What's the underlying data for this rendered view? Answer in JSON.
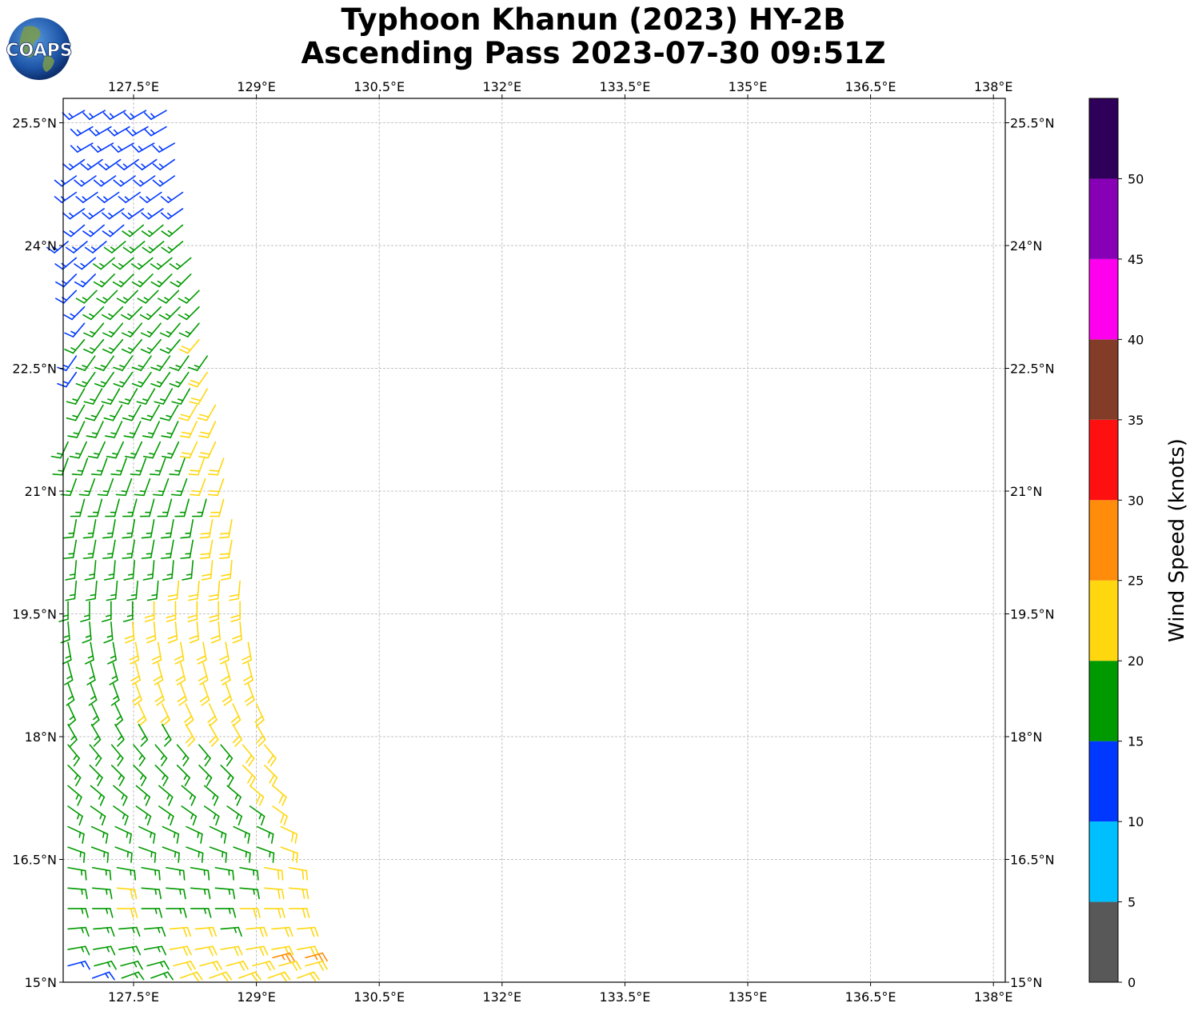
{
  "header": {
    "title_line1": "Typhoon Khanun (2023) HY-2B",
    "title_line2": "Ascending Pass 2023-07-30 09:51Z",
    "logo_text": "COAPS"
  },
  "map": {
    "lon_range": [
      126.7,
      138.2
    ],
    "lat_range": [
      15.0,
      25.8
    ],
    "lon_ticks": [
      {
        "value": 127.5,
        "label": "127.5°E"
      },
      {
        "value": 129.0,
        "label": "129°E"
      },
      {
        "value": 130.5,
        "label": "130.5°E"
      },
      {
        "value": 132.0,
        "label": "132°E"
      },
      {
        "value": 133.5,
        "label": "133.5°E"
      },
      {
        "value": 135.0,
        "label": "135°E"
      },
      {
        "value": 136.5,
        "label": "136.5°E"
      },
      {
        "value": 138.0,
        "label": "138°E"
      }
    ],
    "lat_ticks": [
      {
        "value": 15.0,
        "label": "15°N"
      },
      {
        "value": 16.5,
        "label": "16.5°N"
      },
      {
        "value": 18.0,
        "label": "18°N"
      },
      {
        "value": 19.5,
        "label": "19.5°N"
      },
      {
        "value": 21.0,
        "label": "21°N"
      },
      {
        "value": 22.5,
        "label": "22.5°N"
      },
      {
        "value": 24.0,
        "label": "24°N"
      },
      {
        "value": 25.5,
        "label": "25.5°N"
      }
    ],
    "grid": true,
    "swath_wind_barbs": {
      "description_of_rows": "each row: latitude, lon_start, lon_end, count, wind direction (deg, meteorological from), speed segments [{from_index, speed_kt}]",
      "rows": [
        {
          "lat": 25.65,
          "lon_start": 126.9,
          "lon_end": 127.9,
          "count": 5,
          "dir": 240,
          "speeds": [
            {
              "from": 0,
              "kt": 13
            }
          ]
        },
        {
          "lat": 25.45,
          "lon_start": 127.0,
          "lon_end": 127.9,
          "count": 5,
          "dir": 240,
          "speeds": [
            {
              "from": 0,
              "kt": 13
            }
          ]
        },
        {
          "lat": 25.25,
          "lon_start": 127.0,
          "lon_end": 128.0,
          "count": 5,
          "dir": 240,
          "speeds": [
            {
              "from": 0,
              "kt": 13
            }
          ]
        },
        {
          "lat": 25.05,
          "lon_start": 126.9,
          "lon_end": 128.0,
          "count": 6,
          "dir": 235,
          "speeds": [
            {
              "from": 0,
              "kt": 13
            }
          ]
        },
        {
          "lat": 24.85,
          "lon_start": 126.8,
          "lon_end": 128.0,
          "count": 6,
          "dir": 235,
          "speeds": [
            {
              "from": 0,
              "kt": 13
            }
          ]
        },
        {
          "lat": 24.65,
          "lon_start": 126.8,
          "lon_end": 128.1,
          "count": 6,
          "dir": 235,
          "speeds": [
            {
              "from": 0,
              "kt": 14
            }
          ]
        },
        {
          "lat": 24.45,
          "lon_start": 126.9,
          "lon_end": 128.1,
          "count": 6,
          "dir": 235,
          "speeds": [
            {
              "from": 0,
              "kt": 14
            }
          ]
        },
        {
          "lat": 24.25,
          "lon_start": 126.9,
          "lon_end": 128.1,
          "count": 6,
          "dir": 230,
          "speeds": [
            {
              "from": 0,
              "kt": 14
            },
            {
              "from": 3,
              "kt": 16
            }
          ]
        },
        {
          "lat": 24.05,
          "lon_start": 126.7,
          "lon_end": 128.1,
          "count": 7,
          "dir": 230,
          "speeds": [
            {
              "from": 0,
              "kt": 14
            },
            {
              "from": 3,
              "kt": 16
            }
          ]
        },
        {
          "lat": 23.85,
          "lon_start": 126.8,
          "lon_end": 128.2,
          "count": 7,
          "dir": 230,
          "speeds": [
            {
              "from": 0,
              "kt": 14
            },
            {
              "from": 2,
              "kt": 17
            }
          ]
        },
        {
          "lat": 23.65,
          "lon_start": 126.8,
          "lon_end": 128.2,
          "count": 7,
          "dir": 225,
          "speeds": [
            {
              "from": 0,
              "kt": 14
            },
            {
              "from": 2,
              "kt": 17
            }
          ]
        },
        {
          "lat": 23.45,
          "lon_start": 126.8,
          "lon_end": 128.3,
          "count": 7,
          "dir": 225,
          "speeds": [
            {
              "from": 0,
              "kt": 14
            },
            {
              "from": 1,
              "kt": 17
            }
          ]
        },
        {
          "lat": 23.25,
          "lon_start": 126.9,
          "lon_end": 128.3,
          "count": 7,
          "dir": 225,
          "speeds": [
            {
              "from": 0,
              "kt": 14
            },
            {
              "from": 1,
              "kt": 17
            }
          ]
        },
        {
          "lat": 23.05,
          "lon_start": 126.9,
          "lon_end": 128.3,
          "count": 7,
          "dir": 220,
          "speeds": [
            {
              "from": 0,
              "kt": 14
            },
            {
              "from": 1,
              "kt": 17
            }
          ]
        },
        {
          "lat": 22.85,
          "lon_start": 126.9,
          "lon_end": 128.3,
          "count": 7,
          "dir": 220,
          "speeds": [
            {
              "from": 0,
              "kt": 17
            },
            {
              "from": 6,
              "kt": 21
            }
          ]
        },
        {
          "lat": 22.65,
          "lon_start": 126.8,
          "lon_end": 128.4,
          "count": 8,
          "dir": 215,
          "speeds": [
            {
              "from": 0,
              "kt": 14
            },
            {
              "from": 1,
              "kt": 17
            }
          ]
        },
        {
          "lat": 22.45,
          "lon_start": 126.8,
          "lon_end": 128.4,
          "count": 8,
          "dir": 215,
          "speeds": [
            {
              "from": 0,
              "kt": 14
            },
            {
              "from": 1,
              "kt": 17
            },
            {
              "from": 7,
              "kt": 21
            }
          ]
        },
        {
          "lat": 22.25,
          "lon_start": 126.9,
          "lon_end": 128.4,
          "count": 8,
          "dir": 210,
          "speeds": [
            {
              "from": 0,
              "kt": 17
            },
            {
              "from": 7,
              "kt": 21
            }
          ]
        },
        {
          "lat": 22.05,
          "lon_start": 126.9,
          "lon_end": 128.5,
          "count": 8,
          "dir": 210,
          "speeds": [
            {
              "from": 0,
              "kt": 17
            },
            {
              "from": 6,
              "kt": 21
            }
          ]
        },
        {
          "lat": 21.85,
          "lon_start": 126.9,
          "lon_end": 128.5,
          "count": 8,
          "dir": 205,
          "speeds": [
            {
              "from": 0,
              "kt": 17
            },
            {
              "from": 6,
              "kt": 21
            }
          ]
        },
        {
          "lat": 21.6,
          "lon_start": 126.7,
          "lon_end": 128.5,
          "count": 9,
          "dir": 205,
          "speeds": [
            {
              "from": 0,
              "kt": 17
            },
            {
              "from": 7,
              "kt": 21
            }
          ]
        },
        {
          "lat": 21.4,
          "lon_start": 126.7,
          "lon_end": 128.6,
          "count": 9,
          "dir": 200,
          "speeds": [
            {
              "from": 0,
              "kt": 17
            },
            {
              "from": 7,
              "kt": 21
            }
          ]
        },
        {
          "lat": 21.15,
          "lon_start": 126.8,
          "lon_end": 128.6,
          "count": 9,
          "dir": 200,
          "speeds": [
            {
              "from": 0,
              "kt": 17
            },
            {
              "from": 7,
              "kt": 21
            }
          ]
        },
        {
          "lat": 20.9,
          "lon_start": 126.9,
          "lon_end": 128.6,
          "count": 9,
          "dir": 195,
          "speeds": [
            {
              "from": 0,
              "kt": 17
            },
            {
              "from": 8,
              "kt": 21
            }
          ]
        },
        {
          "lat": 20.65,
          "lon_start": 126.8,
          "lon_end": 128.7,
          "count": 9,
          "dir": 190,
          "speeds": [
            {
              "from": 0,
              "kt": 17
            },
            {
              "from": 7,
              "kt": 21
            }
          ]
        },
        {
          "lat": 20.4,
          "lon_start": 126.8,
          "lon_end": 128.7,
          "count": 9,
          "dir": 190,
          "speeds": [
            {
              "from": 0,
              "kt": 17
            },
            {
              "from": 7,
              "kt": 21
            }
          ]
        },
        {
          "lat": 20.15,
          "lon_start": 126.8,
          "lon_end": 128.7,
          "count": 9,
          "dir": 185,
          "speeds": [
            {
              "from": 0,
              "kt": 17
            },
            {
              "from": 7,
              "kt": 21
            }
          ]
        },
        {
          "lat": 19.9,
          "lon_start": 126.8,
          "lon_end": 128.8,
          "count": 9,
          "dir": 185,
          "speeds": [
            {
              "from": 0,
              "kt": 17
            },
            {
              "from": 5,
              "kt": 21
            }
          ]
        },
        {
          "lat": 19.65,
          "lon_start": 126.7,
          "lon_end": 128.8,
          "count": 9,
          "dir": 180,
          "speeds": [
            {
              "from": 0,
              "kt": 17
            },
            {
              "from": 4,
              "kt": 21
            }
          ]
        },
        {
          "lat": 19.4,
          "lon_start": 126.7,
          "lon_end": 128.8,
          "count": 9,
          "dir": 175,
          "speeds": [
            {
              "from": 0,
              "kt": 17
            },
            {
              "from": 3,
              "kt": 21
            }
          ]
        },
        {
          "lat": 19.15,
          "lon_start": 126.7,
          "lon_end": 128.9,
          "count": 9,
          "dir": 170,
          "speeds": [
            {
              "from": 0,
              "kt": 17
            },
            {
              "from": 3,
              "kt": 21
            }
          ]
        },
        {
          "lat": 18.9,
          "lon_start": 126.7,
          "lon_end": 128.9,
          "count": 9,
          "dir": 165,
          "speeds": [
            {
              "from": 0,
              "kt": 17
            },
            {
              "from": 3,
              "kt": 21
            }
          ]
        },
        {
          "lat": 18.65,
          "lon_start": 126.7,
          "lon_end": 128.9,
          "count": 9,
          "dir": 160,
          "speeds": [
            {
              "from": 0,
              "kt": 17
            },
            {
              "from": 3,
              "kt": 21
            }
          ]
        },
        {
          "lat": 18.4,
          "lon_start": 126.7,
          "lon_end": 129.0,
          "count": 9,
          "dir": 155,
          "speeds": [
            {
              "from": 0,
              "kt": 17
            },
            {
              "from": 3,
              "kt": 21
            }
          ]
        },
        {
          "lat": 18.15,
          "lon_start": 126.7,
          "lon_end": 129.0,
          "count": 9,
          "dir": 150,
          "speeds": [
            {
              "from": 0,
              "kt": 17
            },
            {
              "from": 5,
              "kt": 21
            }
          ]
        },
        {
          "lat": 17.9,
          "lon_start": 126.7,
          "lon_end": 129.1,
          "count": 10,
          "dir": 140,
          "speeds": [
            {
              "from": 0,
              "kt": 17
            },
            {
              "from": 8,
              "kt": 21
            }
          ]
        },
        {
          "lat": 17.65,
          "lon_start": 126.7,
          "lon_end": 129.1,
          "count": 10,
          "dir": 135,
          "speeds": [
            {
              "from": 0,
              "kt": 17
            },
            {
              "from": 8,
              "kt": 21
            }
          ]
        },
        {
          "lat": 17.4,
          "lon_start": 126.7,
          "lon_end": 129.2,
          "count": 10,
          "dir": 130,
          "speeds": [
            {
              "from": 0,
              "kt": 17
            },
            {
              "from": 8,
              "kt": 21
            }
          ]
        },
        {
          "lat": 17.15,
          "lon_start": 126.7,
          "lon_end": 129.2,
          "count": 10,
          "dir": 125,
          "speeds": [
            {
              "from": 0,
              "kt": 17
            },
            {
              "from": 9,
              "kt": 21
            }
          ]
        },
        {
          "lat": 16.9,
          "lon_start": 126.7,
          "lon_end": 129.3,
          "count": 10,
          "dir": 115,
          "speeds": [
            {
              "from": 0,
              "kt": 17
            },
            {
              "from": 9,
              "kt": 21
            }
          ]
        },
        {
          "lat": 16.65,
          "lon_start": 126.7,
          "lon_end": 129.3,
          "count": 10,
          "dir": 110,
          "speeds": [
            {
              "from": 0,
              "kt": 17
            },
            {
              "from": 9,
              "kt": 21
            }
          ]
        },
        {
          "lat": 16.4,
          "lon_start": 126.7,
          "lon_end": 129.4,
          "count": 10,
          "dir": 100,
          "speeds": [
            {
              "from": 0,
              "kt": 17
            },
            {
              "from": 8,
              "kt": 21
            }
          ]
        },
        {
          "lat": 16.15,
          "lon_start": 126.7,
          "lon_end": 129.4,
          "count": 10,
          "dir": 95,
          "speeds": [
            {
              "from": 0,
              "kt": 17
            },
            {
              "from": 2,
              "kt": 21
            },
            {
              "from": 3,
              "kt": 17
            },
            {
              "from": 8,
              "kt": 21
            }
          ]
        },
        {
          "lat": 15.9,
          "lon_start": 126.7,
          "lon_end": 129.4,
          "count": 10,
          "dir": 90,
          "speeds": [
            {
              "from": 0,
              "kt": 17
            },
            {
              "from": 2,
              "kt": 21
            },
            {
              "from": 3,
              "kt": 17
            },
            {
              "from": 7,
              "kt": 21
            }
          ]
        },
        {
          "lat": 15.65,
          "lon_start": 126.7,
          "lon_end": 129.5,
          "count": 10,
          "dir": 85,
          "speeds": [
            {
              "from": 0,
              "kt": 17
            },
            {
              "from": 4,
              "kt": 21
            },
            {
              "from": 6,
              "kt": 17
            },
            {
              "from": 7,
              "kt": 21
            }
          ]
        },
        {
          "lat": 15.4,
          "lon_start": 126.7,
          "lon_end": 129.5,
          "count": 10,
          "dir": 80,
          "speeds": [
            {
              "from": 0,
              "kt": 17
            },
            {
              "from": 4,
              "kt": 21
            }
          ]
        },
        {
          "lat": 15.3,
          "lon_start": 129.2,
          "lon_end": 129.6,
          "count": 2,
          "dir": 75,
          "speeds": [
            {
              "from": 0,
              "kt": 27
            }
          ]
        },
        {
          "lat": 15.2,
          "lon_start": 126.7,
          "lon_end": 129.6,
          "count": 10,
          "dir": 75,
          "speeds": [
            {
              "from": 0,
              "kt": 14
            },
            {
              "from": 1,
              "kt": 17
            },
            {
              "from": 4,
              "kt": 21
            }
          ]
        },
        {
          "lat": 15.05,
          "lon_start": 127.0,
          "lon_end": 129.5,
          "count": 8,
          "dir": 70,
          "speeds": [
            {
              "from": 0,
              "kt": 14
            },
            {
              "from": 1,
              "kt": 17
            },
            {
              "from": 3,
              "kt": 21
            }
          ]
        }
      ]
    }
  },
  "colorbar": {
    "title": "Wind Speed (knots)",
    "bins": [
      {
        "from": 0,
        "to": 5,
        "color": "#585858"
      },
      {
        "from": 5,
        "to": 10,
        "color": "#00bfff"
      },
      {
        "from": 10,
        "to": 15,
        "color": "#0038ff"
      },
      {
        "from": 15,
        "to": 20,
        "color": "#009a00"
      },
      {
        "from": 20,
        "to": 25,
        "color": "#ffd70f"
      },
      {
        "from": 25,
        "to": 30,
        "color": "#ff8c0a"
      },
      {
        "from": 30,
        "to": 35,
        "color": "#ff1010"
      },
      {
        "from": 35,
        "to": 40,
        "color": "#833c28"
      },
      {
        "from": 40,
        "to": 45,
        "color": "#ff00ee"
      },
      {
        "from": 45,
        "to": 50,
        "color": "#8700b5"
      },
      {
        "from": 50,
        "to": 55,
        "color": "#2e005a"
      }
    ],
    "tick_labels": [
      "0",
      "5",
      "10",
      "15",
      "20",
      "25",
      "30",
      "35",
      "40",
      "45",
      "50"
    ]
  }
}
